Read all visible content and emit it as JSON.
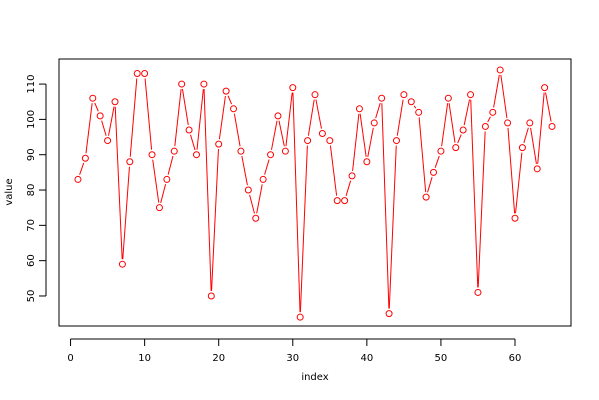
{
  "chart_data": {
    "type": "line_points",
    "x_label": "index",
    "y_label": "value",
    "x": [
      1,
      2,
      3,
      4,
      5,
      6,
      7,
      8,
      9,
      10,
      11,
      12,
      13,
      14,
      15,
      16,
      17,
      18,
      19,
      20,
      21,
      22,
      23,
      24,
      25,
      26,
      27,
      28,
      29,
      30,
      31,
      32,
      33,
      34,
      35,
      36,
      37,
      38,
      39,
      40,
      41,
      42,
      43,
      44,
      45,
      46,
      47,
      48,
      49,
      50,
      51,
      52,
      53,
      54,
      55,
      56,
      57,
      58,
      59,
      60,
      61,
      62,
      63,
      64,
      65
    ],
    "values": [
      83,
      89,
      106,
      101,
      94,
      105,
      59,
      88,
      113,
      113,
      90,
      75,
      83,
      91,
      110,
      97,
      90,
      110,
      50,
      93,
      108,
      103,
      91,
      80,
      72,
      83,
      90,
      101,
      91,
      109,
      44,
      94,
      107,
      96,
      94,
      77,
      77,
      84,
      103,
      88,
      99,
      106,
      45,
      94,
      107,
      105,
      102,
      78,
      85,
      91,
      106,
      92,
      97,
      107,
      51,
      98,
      102,
      114,
      99,
      72,
      92,
      99,
      86,
      109,
      98
    ],
    "color": "#ff0000",
    "xlim": [
      -1.56,
      67.56
    ],
    "ylim": [
      41.5,
      117.1
    ],
    "xticks": [
      0,
      10,
      20,
      30,
      40,
      50,
      60
    ],
    "yticks": [
      50,
      60,
      70,
      80,
      90,
      100,
      110
    ]
  }
}
